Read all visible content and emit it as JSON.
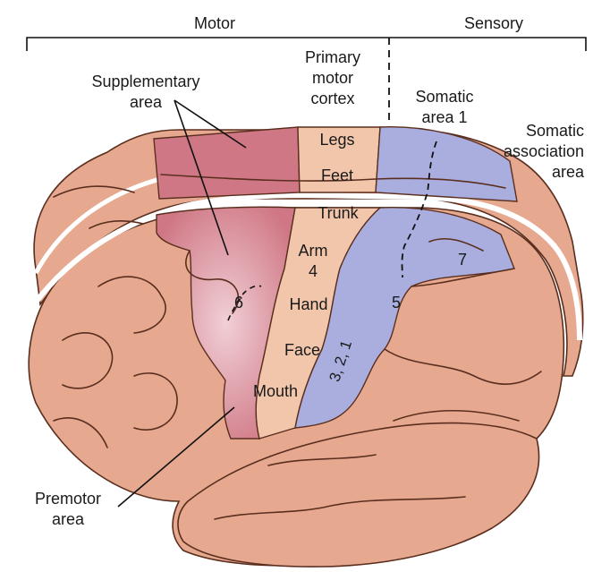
{
  "headers": {
    "motor": "Motor",
    "sensory": "Sensory"
  },
  "labels": {
    "supplementary": [
      "Supplementary",
      "area"
    ],
    "primary_motor": [
      "Primary",
      "motor",
      "cortex"
    ],
    "somatic1": [
      "Somatic",
      "area 1"
    ],
    "somatic_assoc": [
      "Somatic",
      "association",
      "area"
    ],
    "premotor": [
      "Premotor",
      "area"
    ]
  },
  "body_parts": {
    "legs": "Legs",
    "feet": "Feet",
    "trunk": "Trunk",
    "arm": "Arm",
    "hand": "Hand",
    "face": "Face",
    "mouth": "Mouth"
  },
  "areas": {
    "a4": "4",
    "a6": "6",
    "a5": "5",
    "a7": "7",
    "a321": "3, 2, 1"
  },
  "colors": {
    "brain": "#e6a98f",
    "outline": "#5a2e1e",
    "motor_pink": "#cf7784",
    "motor_strip": "#f1c6ab",
    "sensory_blue": "#a9aedf"
  }
}
